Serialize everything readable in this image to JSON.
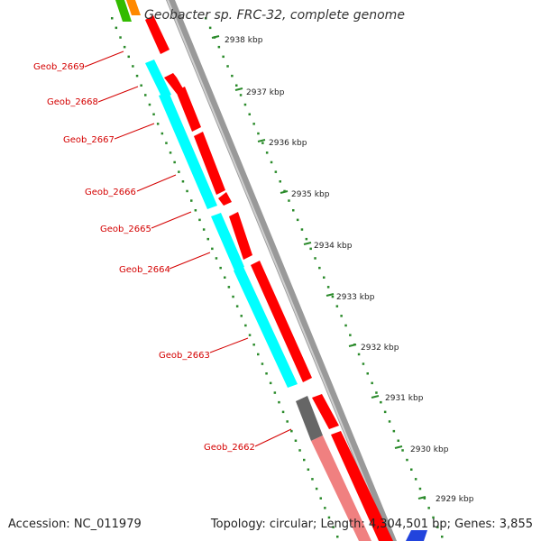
{
  "title": "Geobacter sp. FRC-32, complete genome",
  "accession": "Accession: NC_011979",
  "summary": "Topology: circular; Length: 4,304,501 bp; Genes: 3,855",
  "colors": {
    "forward_cds": "#ff0000",
    "reverse_cds": "#00ffff",
    "pseudo_forward": "#f08080",
    "unknown": "#666666",
    "backbone": "#888888",
    "gc_ticks": "#2a8a2a",
    "label_line": "#d40000"
  },
  "scale_labels": [
    "2938 kbp",
    "2937 kbp",
    "2936 kbp",
    "2935 kbp",
    "2934 kbp",
    "2933 kbp",
    "2932 kbp",
    "2931 kbp",
    "2930 kbp",
    "2929 kbp"
  ],
  "gene_labels": [
    "Geob_2669",
    "Geob_2668",
    "Geob_2667",
    "Geob_2666",
    "Geob_2665",
    "Geob_2664",
    "Geob_2663",
    "Geob_2662"
  ]
}
